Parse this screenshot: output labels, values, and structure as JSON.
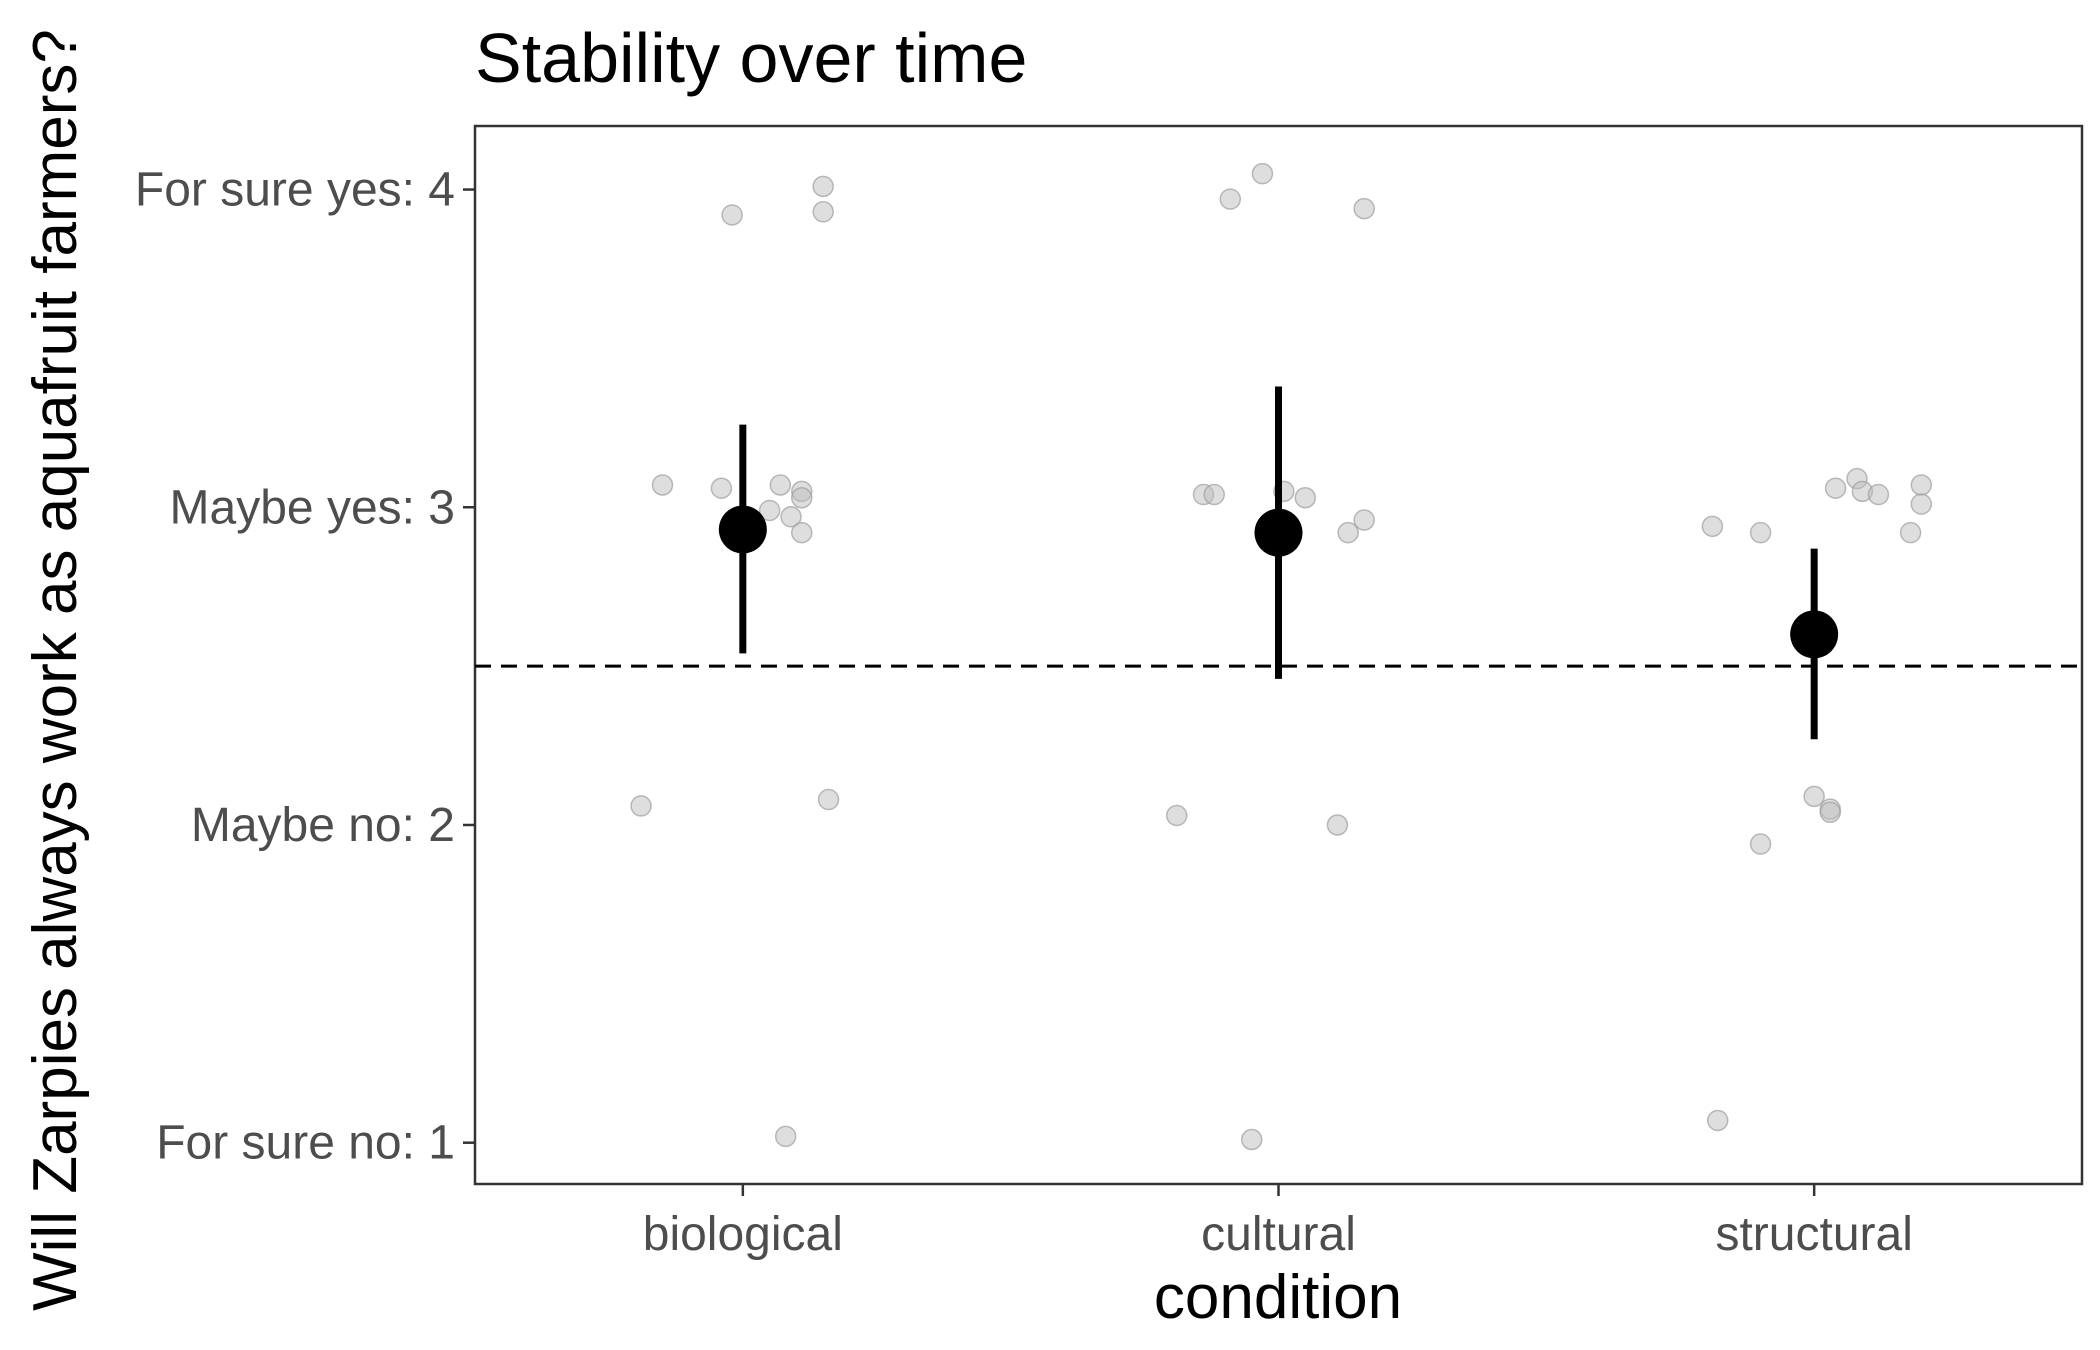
{
  "chart_data": {
    "type": "scatter",
    "title": "Stability over time",
    "xlabel": "condition",
    "ylabel": "Will Zarpies always work as aquafruit farmers?",
    "categories": [
      "biological",
      "cultural",
      "structural"
    ],
    "y_ticks": [
      {
        "value": 1,
        "label": "For sure no: 1"
      },
      {
        "value": 2,
        "label": "Maybe no: 2"
      },
      {
        "value": 3,
        "label": "Maybe yes: 3"
      },
      {
        "value": 4,
        "label": "For sure yes: 4"
      }
    ],
    "ylim": [
      0.87,
      4.2
    ],
    "reference_line": {
      "y": 2.5,
      "style": "dashed"
    },
    "summary": [
      {
        "category": "biological",
        "mean": 2.93,
        "ci_low": 2.54,
        "ci_high": 3.26
      },
      {
        "category": "cultural",
        "mean": 2.92,
        "ci_low": 2.46,
        "ci_high": 3.38
      },
      {
        "category": "structural",
        "mean": 2.6,
        "ci_low": 2.27,
        "ci_high": 2.87
      }
    ],
    "points": [
      {
        "category": "biological",
        "x_offset": -0.02,
        "y": 3.92
      },
      {
        "category": "biological",
        "x_offset": 0.15,
        "y": 4.01
      },
      {
        "category": "biological",
        "x_offset": 0.15,
        "y": 3.93
      },
      {
        "category": "biological",
        "x_offset": -0.15,
        "y": 3.07
      },
      {
        "category": "biological",
        "x_offset": -0.04,
        "y": 3.06
      },
      {
        "category": "biological",
        "x_offset": 0.07,
        "y": 3.07
      },
      {
        "category": "biological",
        "x_offset": 0.11,
        "y": 3.05
      },
      {
        "category": "biological",
        "x_offset": 0.11,
        "y": 3.03
      },
      {
        "category": "biological",
        "x_offset": 0.05,
        "y": 2.99
      },
      {
        "category": "biological",
        "x_offset": 0.09,
        "y": 2.97
      },
      {
        "category": "biological",
        "x_offset": 0.11,
        "y": 2.92
      },
      {
        "category": "biological",
        "x_offset": -0.19,
        "y": 2.06
      },
      {
        "category": "biological",
        "x_offset": 0.16,
        "y": 2.08
      },
      {
        "category": "biological",
        "x_offset": 0.08,
        "y": 1.02
      },
      {
        "category": "cultural",
        "x_offset": -0.09,
        "y": 3.97
      },
      {
        "category": "cultural",
        "x_offset": -0.03,
        "y": 4.05
      },
      {
        "category": "cultural",
        "x_offset": 0.16,
        "y": 3.94
      },
      {
        "category": "cultural",
        "x_offset": -0.14,
        "y": 3.04
      },
      {
        "category": "cultural",
        "x_offset": -0.12,
        "y": 3.04
      },
      {
        "category": "cultural",
        "x_offset": 0.01,
        "y": 3.05
      },
      {
        "category": "cultural",
        "x_offset": 0.05,
        "y": 3.03
      },
      {
        "category": "cultural",
        "x_offset": 0.16,
        "y": 2.96
      },
      {
        "category": "cultural",
        "x_offset": 0.13,
        "y": 2.92
      },
      {
        "category": "cultural",
        "x_offset": -0.19,
        "y": 2.03
      },
      {
        "category": "cultural",
        "x_offset": 0.11,
        "y": 2.0
      },
      {
        "category": "cultural",
        "x_offset": -0.05,
        "y": 1.01
      },
      {
        "category": "structural",
        "x_offset": -0.19,
        "y": 2.94
      },
      {
        "category": "structural",
        "x_offset": -0.1,
        "y": 2.92
      },
      {
        "category": "structural",
        "x_offset": 0.04,
        "y": 3.06
      },
      {
        "category": "structural",
        "x_offset": 0.08,
        "y": 3.09
      },
      {
        "category": "structural",
        "x_offset": 0.09,
        "y": 3.05
      },
      {
        "category": "structural",
        "x_offset": 0.12,
        "y": 3.04
      },
      {
        "category": "structural",
        "x_offset": 0.2,
        "y": 3.07
      },
      {
        "category": "structural",
        "x_offset": 0.2,
        "y": 3.01
      },
      {
        "category": "structural",
        "x_offset": 0.18,
        "y": 2.92
      },
      {
        "category": "structural",
        "x_offset": 0.0,
        "y": 2.09
      },
      {
        "category": "structural",
        "x_offset": 0.03,
        "y": 2.05
      },
      {
        "category": "structural",
        "x_offset": 0.03,
        "y": 2.04
      },
      {
        "category": "structural",
        "x_offset": -0.1,
        "y": 1.94
      },
      {
        "category": "structural",
        "x_offset": -0.18,
        "y": 1.07
      }
    ],
    "grid": false,
    "colors": {
      "summary": "#000000",
      "points": "#bdbdbd",
      "panel_border": "#333333",
      "tick_text": "#4d4d4d"
    }
  }
}
